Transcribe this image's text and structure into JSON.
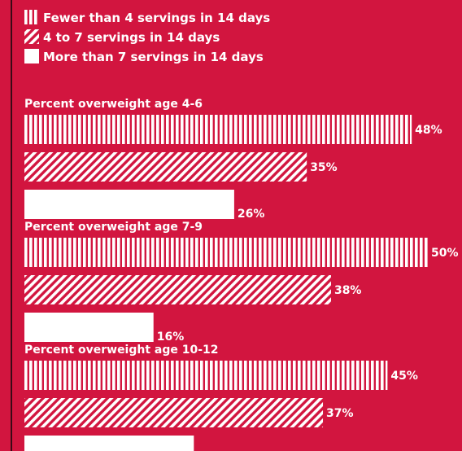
{
  "chart_data": {
    "type": "bar",
    "orientation": "horizontal",
    "legend_position": "top-left",
    "value_suffix": "%",
    "series": [
      {
        "name": "Fewer than 4 servings in 14 days",
        "pattern": "vertical-stripes"
      },
      {
        "name": "4 to 7 servings in 14 days",
        "pattern": "diagonal-stripes"
      },
      {
        "name": "More than 7 servings in 14 days",
        "pattern": "solid"
      }
    ],
    "groups": [
      {
        "title": "Percent overweight age 4-6",
        "values": [
          48,
          35,
          26
        ]
      },
      {
        "title": "Percent overweight age 7-9",
        "values": [
          50,
          38,
          16
        ]
      },
      {
        "title": "Percent overweight age 10-12",
        "values": [
          45,
          37,
          21
        ]
      }
    ],
    "xlim": [
      0,
      50
    ]
  },
  "colors": {
    "background": "#D2153F",
    "bar": "#FFFFFF"
  }
}
